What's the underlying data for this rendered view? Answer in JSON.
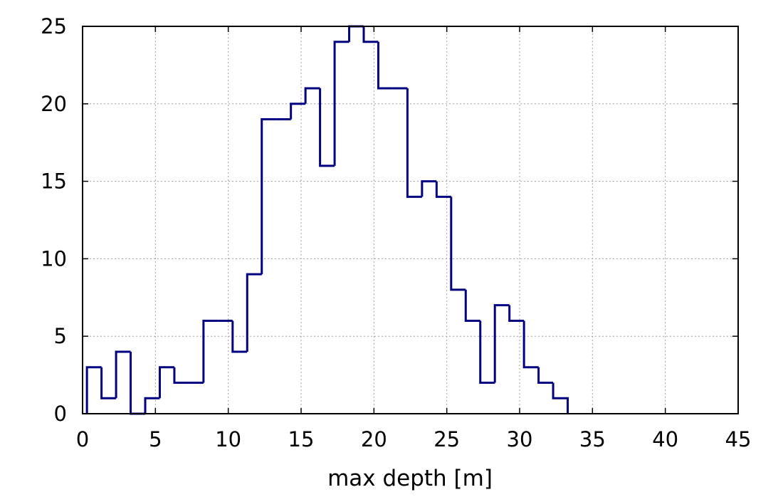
{
  "chart_data": {
    "type": "histogram",
    "title": "",
    "xlabel": "max depth [m]",
    "ylabel": "",
    "xlim": [
      0,
      45
    ],
    "ylim": [
      0,
      25
    ],
    "xticks": [
      0,
      5,
      10,
      15,
      20,
      25,
      30,
      35,
      40,
      45
    ],
    "yticks": [
      0,
      5,
      10,
      15,
      20,
      25
    ],
    "grid": true,
    "legend": "none",
    "bin_width": 1,
    "bins": [
      {
        "x0": 0.3,
        "x1": 1.3,
        "count": 3
      },
      {
        "x0": 1.3,
        "x1": 2.3,
        "count": 1
      },
      {
        "x0": 2.3,
        "x1": 3.3,
        "count": 4
      },
      {
        "x0": 3.3,
        "x1": 4.3,
        "count": 0
      },
      {
        "x0": 4.3,
        "x1": 5.3,
        "count": 1
      },
      {
        "x0": 5.3,
        "x1": 6.3,
        "count": 3
      },
      {
        "x0": 6.3,
        "x1": 7.3,
        "count": 2
      },
      {
        "x0": 7.3,
        "x1": 8.3,
        "count": 2
      },
      {
        "x0": 8.3,
        "x1": 9.3,
        "count": 6
      },
      {
        "x0": 9.3,
        "x1": 10.3,
        "count": 6
      },
      {
        "x0": 10.3,
        "x1": 11.3,
        "count": 4
      },
      {
        "x0": 11.3,
        "x1": 12.3,
        "count": 9
      },
      {
        "x0": 12.3,
        "x1": 13.3,
        "count": 19
      },
      {
        "x0": 13.3,
        "x1": 14.3,
        "count": 19
      },
      {
        "x0": 14.3,
        "x1": 15.3,
        "count": 20
      },
      {
        "x0": 15.3,
        "x1": 16.3,
        "count": 21
      },
      {
        "x0": 16.3,
        "x1": 17.3,
        "count": 16
      },
      {
        "x0": 17.3,
        "x1": 18.3,
        "count": 24
      },
      {
        "x0": 18.3,
        "x1": 19.3,
        "count": 25
      },
      {
        "x0": 19.3,
        "x1": 20.3,
        "count": 24
      },
      {
        "x0": 20.3,
        "x1": 21.3,
        "count": 21
      },
      {
        "x0": 21.3,
        "x1": 22.3,
        "count": 21
      },
      {
        "x0": 22.3,
        "x1": 23.3,
        "count": 14
      },
      {
        "x0": 23.3,
        "x1": 24.3,
        "count": 15
      },
      {
        "x0": 24.3,
        "x1": 25.3,
        "count": 14
      },
      {
        "x0": 25.3,
        "x1": 26.3,
        "count": 8
      },
      {
        "x0": 26.3,
        "x1": 27.3,
        "count": 6
      },
      {
        "x0": 27.3,
        "x1": 28.3,
        "count": 2
      },
      {
        "x0": 28.3,
        "x1": 29.3,
        "count": 7
      },
      {
        "x0": 29.3,
        "x1": 30.3,
        "count": 6
      },
      {
        "x0": 30.3,
        "x1": 31.3,
        "count": 3
      },
      {
        "x0": 31.3,
        "x1": 32.3,
        "count": 2
      },
      {
        "x0": 32.3,
        "x1": 33.3,
        "count": 1
      }
    ],
    "colors": {
      "series": "#000080",
      "grid": "#a0a0a0",
      "axis": "#000000"
    }
  }
}
